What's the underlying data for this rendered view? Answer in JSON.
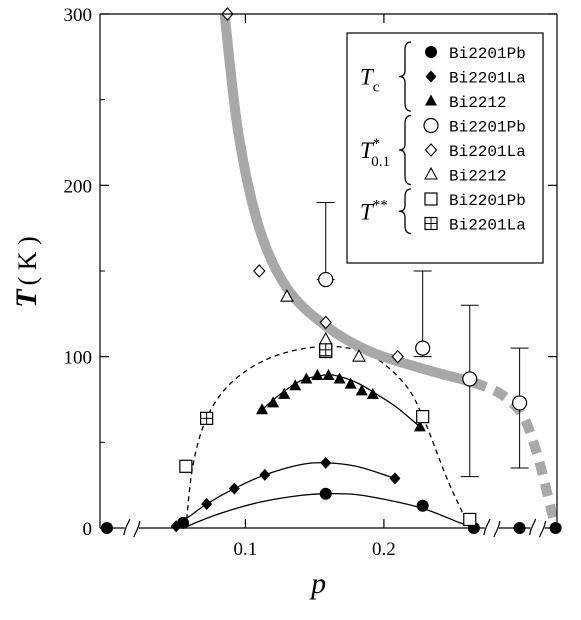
{
  "chart_data": {
    "type": "scatter",
    "xlabel": "p",
    "ylabel": "T (K)",
    "ylabel_main": "T",
    "ylabel_unit": "( K )",
    "xlim": [
      -0.005,
      0.325
    ],
    "ylim": [
      0,
      300
    ],
    "x_ticks": [
      0.1,
      0.2
    ],
    "x_tick_labels": [
      "0.1",
      "0.2"
    ],
    "y_ticks": [
      0,
      100,
      200,
      300
    ],
    "y_tick_labels": [
      "0",
      "100",
      "200",
      "300"
    ],
    "grid": false,
    "legend_position": "top-right",
    "legend_groups": [
      {
        "symbol": "T",
        "sub": "c",
        "sup": "",
        "entries": [
          "Bi2201Pb",
          "Bi2201La",
          "Bi2212"
        ]
      },
      {
        "symbol": "T",
        "sub": "0.1",
        "sup": "*",
        "entries": [
          "Bi2201Pb",
          "Bi2201La",
          "Bi2212"
        ]
      },
      {
        "symbol": "T",
        "sub": "",
        "sup": "**",
        "entries": [
          "Bi2201Pb",
          "Bi2201La"
        ]
      }
    ],
    "series": [
      {
        "group": "Tc",
        "name": "Bi2201Pb",
        "marker": "filled-circle",
        "points": [
          [
            0.055,
            3
          ],
          [
            0.158,
            20
          ],
          [
            0.228,
            13
          ],
          [
            0.0,
            0
          ],
          [
            0.265,
            0
          ],
          [
            0.298,
            0
          ],
          [
            0.324,
            0
          ]
        ]
      },
      {
        "group": "Tc",
        "name": "Bi2201La",
        "marker": "filled-diamond",
        "points": [
          [
            0.05,
            1
          ],
          [
            0.072,
            14
          ],
          [
            0.092,
            23
          ],
          [
            0.114,
            31
          ],
          [
            0.158,
            38
          ],
          [
            0.208,
            29
          ]
        ]
      },
      {
        "group": "Tc",
        "name": "Bi2212",
        "marker": "filled-triangle",
        "points": [
          [
            0.112,
            69
          ],
          [
            0.12,
            73
          ],
          [
            0.128,
            78
          ],
          [
            0.136,
            83
          ],
          [
            0.144,
            87
          ],
          [
            0.152,
            89
          ],
          [
            0.16,
            89
          ],
          [
            0.168,
            87
          ],
          [
            0.176,
            84
          ],
          [
            0.184,
            80
          ],
          [
            0.192,
            78
          ],
          [
            0.226,
            59
          ]
        ]
      },
      {
        "group": "T*0.1",
        "name": "Bi2201Pb",
        "marker": "open-circle",
        "points": [
          [
            0.158,
            145
          ],
          [
            0.228,
            105
          ],
          [
            0.262,
            87
          ],
          [
            0.298,
            73
          ]
        ]
      },
      {
        "group": "T*0.1",
        "name": "Bi2201La",
        "marker": "open-diamond",
        "points": [
          [
            0.087,
            300
          ],
          [
            0.11,
            150
          ],
          [
            0.158,
            120
          ],
          [
            0.21,
            100
          ]
        ]
      },
      {
        "group": "T*0.1",
        "name": "Bi2212",
        "marker": "open-triangle",
        "points": [
          [
            0.13,
            135
          ],
          [
            0.158,
            110
          ],
          [
            0.182,
            100
          ]
        ]
      },
      {
        "group": "T**",
        "name": "Bi2201Pb",
        "marker": "open-square",
        "points": [
          [
            0.057,
            36
          ],
          [
            0.158,
            103
          ],
          [
            0.228,
            65
          ],
          [
            0.262,
            5
          ]
        ]
      },
      {
        "group": "T**",
        "name": "Bi2201La",
        "marker": "boxed-plus",
        "points": [
          [
            0.072,
            64
          ],
          [
            0.158,
            104
          ]
        ]
      }
    ],
    "error_bars": [
      {
        "x": 0.158,
        "y": 145,
        "low": 145,
        "high": 190
      },
      {
        "x": 0.228,
        "y": 105,
        "low": 100,
        "high": 150
      },
      {
        "x": 0.262,
        "y": 87,
        "low": 30,
        "high": 130
      },
      {
        "x": 0.298,
        "y": 73,
        "low": 35,
        "high": 105
      }
    ],
    "curves": [
      {
        "name": "Bi2201Pb Tc dome",
        "style": "solid",
        "x": [
          0.055,
          0.08,
          0.11,
          0.14,
          0.158,
          0.18,
          0.205,
          0.23,
          0.255,
          0.268
        ],
        "y": [
          0,
          8,
          15,
          19,
          20,
          19.5,
          16,
          11,
          3,
          0
        ]
      },
      {
        "name": "Bi2201La Tc dome",
        "style": "solid",
        "x": [
          0.047,
          0.06,
          0.072,
          0.092,
          0.114,
          0.14,
          0.158,
          0.18,
          0.208
        ],
        "y": [
          0,
          7,
          14,
          23,
          31,
          37,
          38,
          36,
          29
        ]
      },
      {
        "name": "Bi2212 Tc dome",
        "style": "solid",
        "x": [
          0.112,
          0.125,
          0.14,
          0.155,
          0.165,
          0.18,
          0.195,
          0.21,
          0.226
        ],
        "y": [
          69,
          78,
          86,
          89,
          89,
          85,
          78,
          70,
          59
        ]
      },
      {
        "name": "T** dome",
        "style": "dashed",
        "x": [
          0.057,
          0.062,
          0.072,
          0.09,
          0.12,
          0.158,
          0.19,
          0.215,
          0.228,
          0.245,
          0.255,
          0.262
        ],
        "y": [
          0,
          36,
          64,
          85,
          100,
          106,
          101,
          84,
          65,
          30,
          12,
          0
        ]
      },
      {
        "name": "T* line",
        "style": "thick-gray",
        "x": [
          0.085,
          0.095,
          0.11,
          0.13,
          0.158,
          0.19,
          0.228,
          0.265
        ],
        "y": [
          300,
          230,
          175,
          140,
          118,
          103,
          93,
          85
        ]
      },
      {
        "name": "T* extension",
        "style": "thick-gray-dashed",
        "x": [
          0.265,
          0.285,
          0.3,
          0.31,
          0.318,
          0.324
        ],
        "y": [
          85,
          78,
          66,
          45,
          20,
          0
        ]
      }
    ],
    "axis_breaks_x": [
      0.018,
      0.278,
      0.311
    ]
  }
}
